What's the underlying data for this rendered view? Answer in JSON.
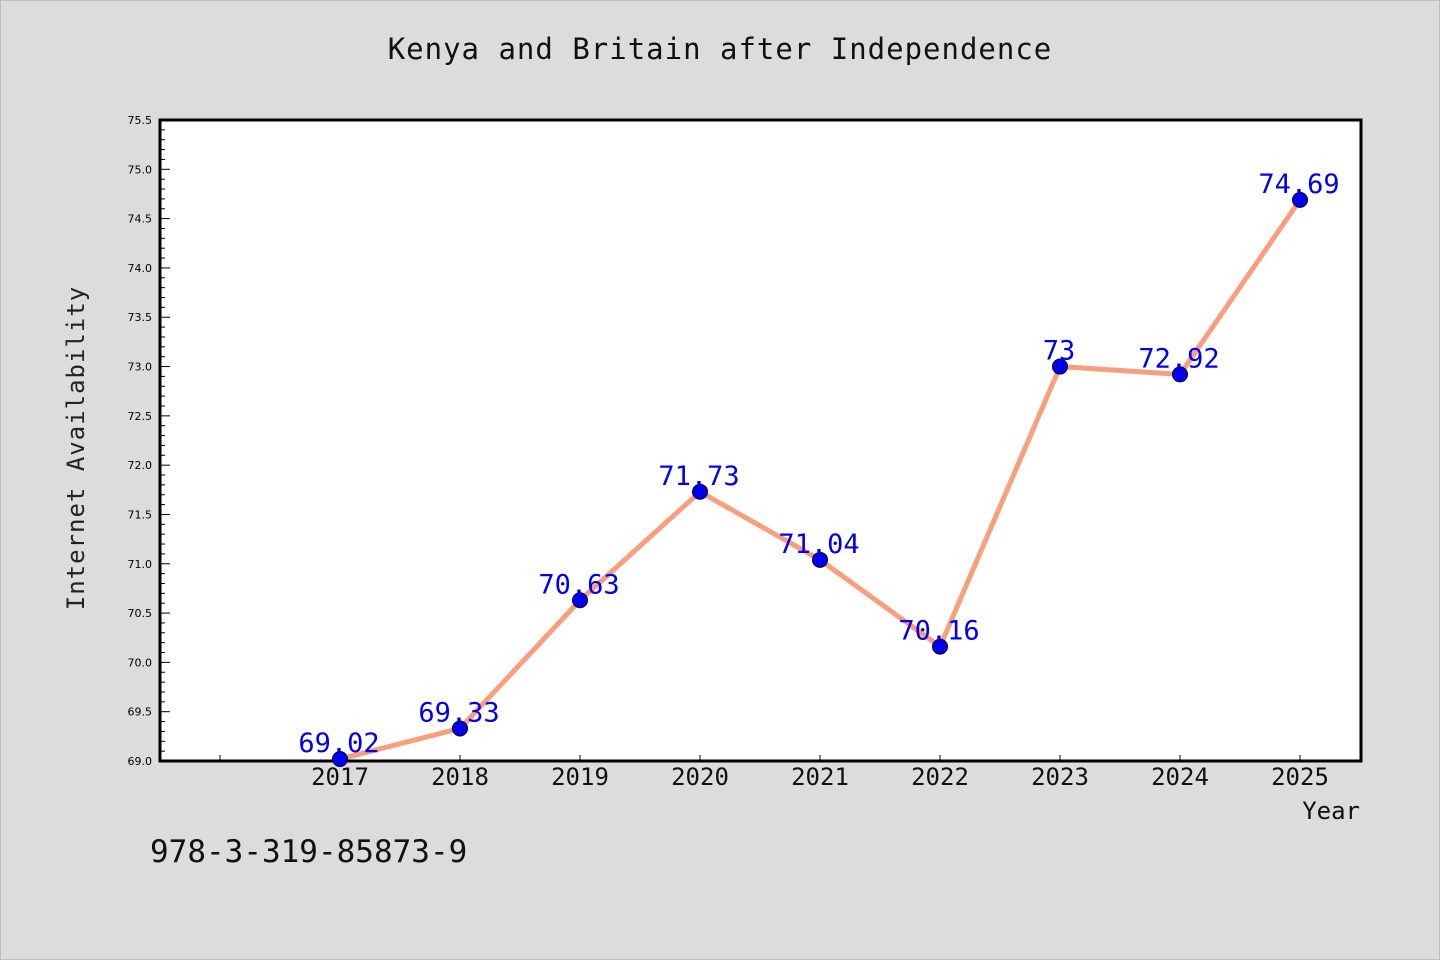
{
  "chart_data": {
    "type": "line",
    "title": "Kenya and Britain after Independence",
    "xlabel": "Year",
    "ylabel": "Internet Availability",
    "categories": [
      "2017",
      "2018",
      "2019",
      "2020",
      "2021",
      "2022",
      "2023",
      "2024",
      "2025"
    ],
    "series": [
      {
        "values": [
          69.02,
          69.33,
          70.63,
          71.73,
          71.04,
          70.16,
          73,
          72.92,
          74.69
        ],
        "labels": [
          "69.02",
          "69.33",
          "70.63",
          "71.73",
          "71.04",
          "70.16",
          "73",
          "72.92",
          "74.69"
        ],
        "line_color": "#fa9e7e",
        "marker_color": "#0000ee"
      }
    ],
    "y_ticks": [
      "69.0",
      "69.5",
      "70.0",
      "70.5",
      "71.0",
      "71.5",
      "72.0",
      "72.5",
      "73.0",
      "73.5",
      "74.0",
      "74.5",
      "75.0",
      "75.5"
    ],
    "ylim": [
      69.0,
      75.5
    ],
    "data_label_color": "#0000ee",
    "grid": false,
    "legend": "none"
  },
  "footer": {
    "isbn": "978-3-319-85873-9"
  }
}
